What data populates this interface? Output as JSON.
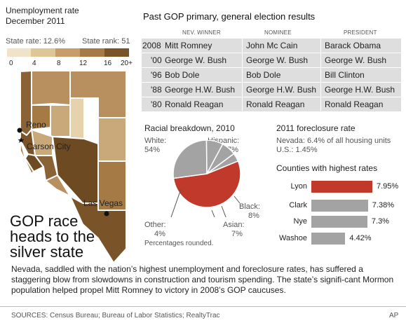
{
  "map_panel": {
    "title_line1": "Unemployment rate",
    "title_line2": "December 2011",
    "state_rate": "State rate: 12.6%",
    "state_rank": "State rank: 51",
    "legend": {
      "ticks": [
        "0",
        "4",
        "8",
        "12",
        "16",
        "20+"
      ],
      "colors": [
        "#f1e3c8",
        "#e0c597",
        "#c89e68",
        "#a57a45",
        "#7a5328"
      ]
    },
    "cities": {
      "reno": "Reno",
      "carson_city": "Carson City",
      "las_vegas": "Las Vegas"
    },
    "headline": [
      "GOP race",
      "heads to the",
      "silver state"
    ]
  },
  "results_table": {
    "title": "Past GOP primary, general election results",
    "headers": [
      "NEV. WINNER",
      "NOMINEE",
      "PRESIDENT"
    ],
    "rows": [
      {
        "year": "2008",
        "winner": "Mitt Romney",
        "nominee": "John Mc Cain",
        "president": "Barack Obama"
      },
      {
        "year": "'00",
        "winner": "George W. Bush",
        "nominee": "George W. Bush",
        "president": "George W. Bush"
      },
      {
        "year": "'96",
        "winner": "Bob Dole",
        "nominee": "Bob Dole",
        "president": "Bill Clinton"
      },
      {
        "year": "'88",
        "winner": "George H.W. Bush",
        "nominee": "George H.W. Bush",
        "president": "George H.W. Bush"
      },
      {
        "year": "'80",
        "winner": "Ronald Reagan",
        "nominee": "Ronald Reagan",
        "president": "Ronald Reagan"
      }
    ]
  },
  "racial": {
    "title": "Racial breakdown, 2010",
    "labels": {
      "white_name": "White:",
      "white_value": "54%",
      "hispanic_name": "Hispanic:",
      "hispanic_value": "27%",
      "black_name": "Black:",
      "black_value": "8%",
      "asian_name": "Asian:",
      "asian_value": "7%",
      "other_name": "Other:",
      "other_value": "4%"
    },
    "note": "Percentages rounded.",
    "colors": {
      "white": "#c0392b",
      "others": "#a3a3a3"
    }
  },
  "foreclosure": {
    "title": "2011 foreclosure rate",
    "line1": "Nevada: 6.4% of all housing units",
    "line2": "U.S.: 1.45%",
    "counties_title": "Counties with highest rates",
    "colors": {
      "highlight": "#c0392b",
      "normal": "#a3a3a3"
    }
  },
  "chart_data": [
    {
      "type": "pie",
      "title": "Racial breakdown, 2010",
      "categories": [
        "White",
        "Hispanic",
        "Black",
        "Asian",
        "Other"
      ],
      "values": [
        54,
        27,
        8,
        7,
        4
      ],
      "note": "Percentages rounded."
    },
    {
      "type": "bar",
      "title": "Counties with highest rates",
      "categories": [
        "Lyon",
        "Clark",
        "Nye",
        "Washoe"
      ],
      "values": [
        7.95,
        7.38,
        7.3,
        4.42
      ],
      "value_labels": [
        "7.95%",
        "7.38%",
        "7.3%",
        "4.42%"
      ]
    }
  ],
  "summary": "Nevada, saddled with the nation’s highest unemployment and foreclosure rates, has suffered a staggering blow from slowdowns in construction and tourism spending. The state’s signifi-cant Mormon population helped propel Mitt Romney to victory in 2008’s GOP caucuses.",
  "footer": {
    "sources": "SOURCES: Census Bureau; Bureau of Labor Statistics; RealtyTrac",
    "credit": "AP"
  }
}
